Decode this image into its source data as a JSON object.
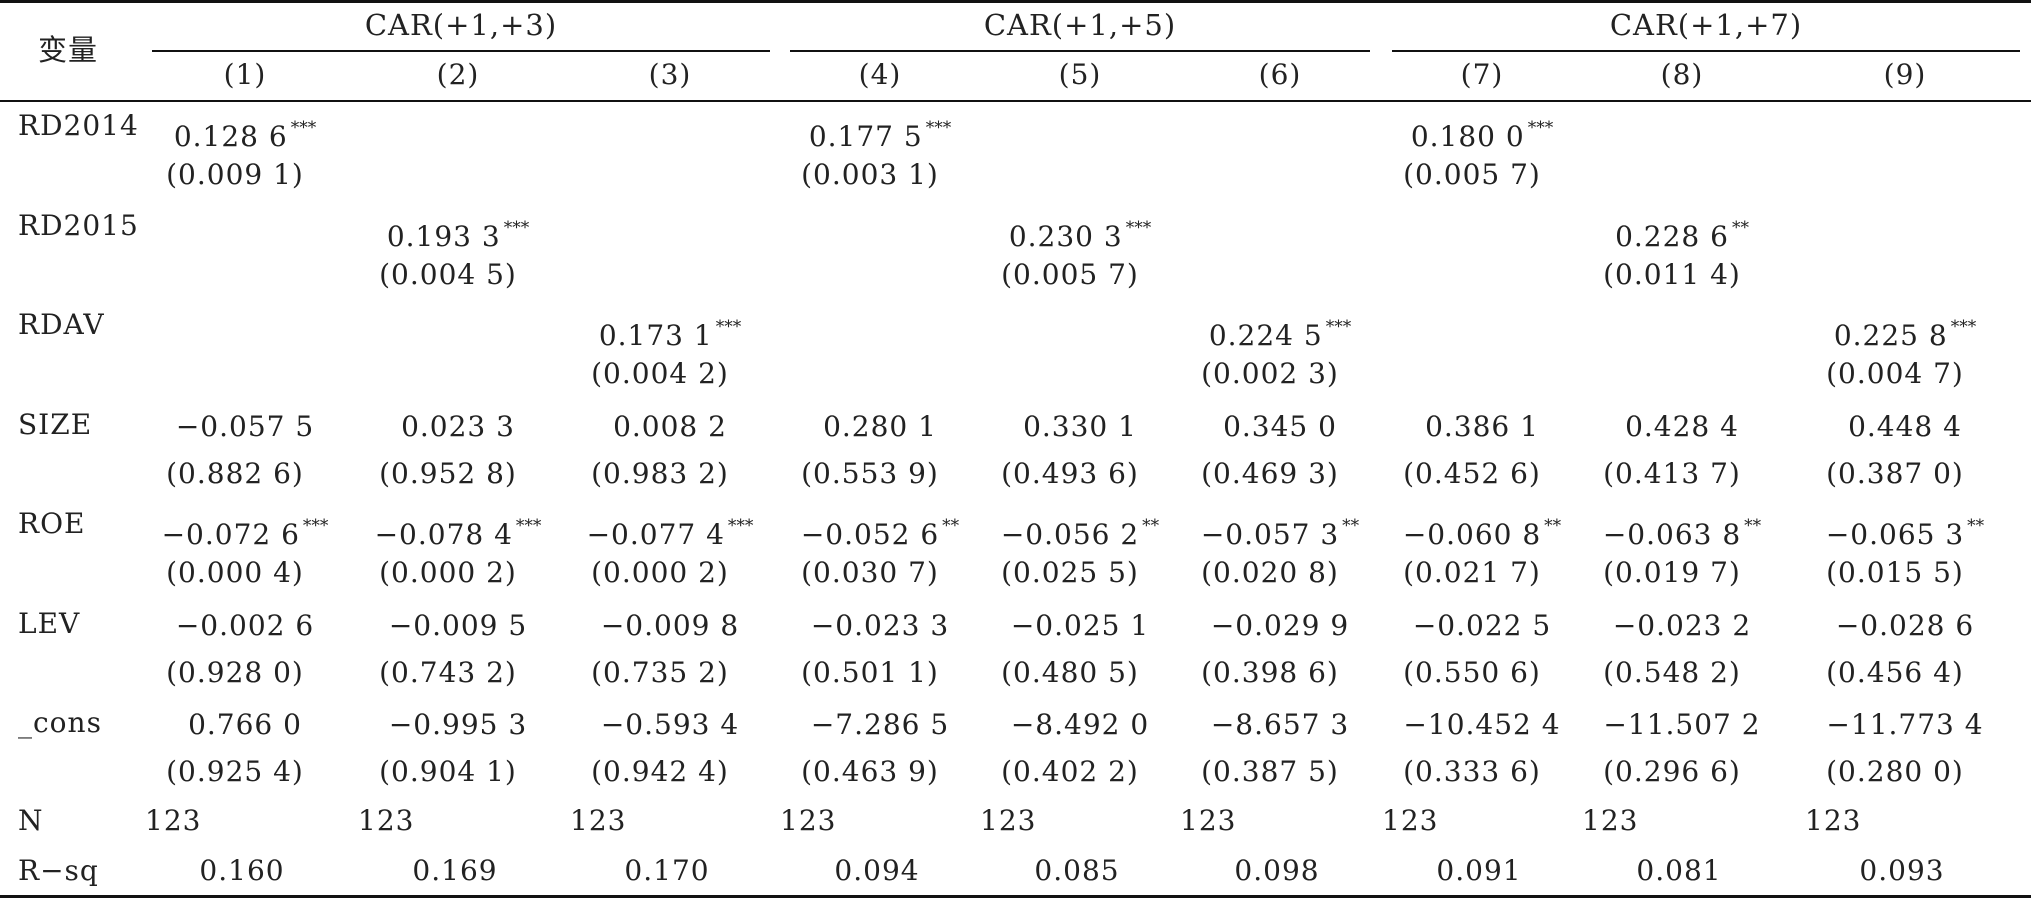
{
  "header": {
    "var_label": "变量",
    "groups": [
      "CAR(+1,+3)",
      "CAR(+1,+5)",
      "CAR(+1,+7)"
    ],
    "columns": [
      "(1)",
      "(2)",
      "(3)",
      "(4)",
      "(5)",
      "(6)",
      "(7)",
      "(8)",
      "(9)"
    ]
  },
  "rows": [
    {
      "label": "RD2014",
      "coef": [
        {
          "v": "0.128 6",
          "s": "***"
        },
        {
          "v": "",
          "s": ""
        },
        {
          "v": "",
          "s": ""
        },
        {
          "v": "0.177 5",
          "s": "***"
        },
        {
          "v": "",
          "s": ""
        },
        {
          "v": "",
          "s": ""
        },
        {
          "v": "0.180 0",
          "s": "***"
        },
        {
          "v": "",
          "s": ""
        },
        {
          "v": "",
          "s": ""
        }
      ],
      "p": [
        "(0.009 1)",
        "",
        "",
        "(0.003 1)",
        "",
        "",
        "(0.005 7)",
        "",
        ""
      ]
    },
    {
      "label": "RD2015",
      "coef": [
        {
          "v": "",
          "s": ""
        },
        {
          "v": "0.193 3",
          "s": "***"
        },
        {
          "v": "",
          "s": ""
        },
        {
          "v": "",
          "s": ""
        },
        {
          "v": "0.230 3",
          "s": "***"
        },
        {
          "v": "",
          "s": ""
        },
        {
          "v": "",
          "s": ""
        },
        {
          "v": "0.228 6",
          "s": "**"
        },
        {
          "v": "",
          "s": ""
        }
      ],
      "p": [
        "",
        "(0.004 5)",
        "",
        "",
        "(0.005 7)",
        "",
        "",
        "(0.011 4)",
        ""
      ]
    },
    {
      "label": "RDAV",
      "coef": [
        {
          "v": "",
          "s": ""
        },
        {
          "v": "",
          "s": ""
        },
        {
          "v": "0.173 1",
          "s": "***"
        },
        {
          "v": "",
          "s": ""
        },
        {
          "v": "",
          "s": ""
        },
        {
          "v": "0.224 5",
          "s": "***"
        },
        {
          "v": "",
          "s": ""
        },
        {
          "v": "",
          "s": ""
        },
        {
          "v": "0.225 8",
          "s": "***"
        }
      ],
      "p": [
        "",
        "",
        "(0.004 2)",
        "",
        "",
        "(0.002 3)",
        "",
        "",
        "(0.004 7)"
      ]
    },
    {
      "label": "SIZE",
      "coef": [
        {
          "v": "−0.057 5",
          "s": ""
        },
        {
          "v": "0.023 3",
          "s": ""
        },
        {
          "v": "0.008 2",
          "s": ""
        },
        {
          "v": "0.280 1",
          "s": ""
        },
        {
          "v": "0.330 1",
          "s": ""
        },
        {
          "v": "0.345 0",
          "s": ""
        },
        {
          "v": "0.386 1",
          "s": ""
        },
        {
          "v": "0.428 4",
          "s": ""
        },
        {
          "v": "0.448 4",
          "s": ""
        }
      ],
      "p": [
        "(0.882 6)",
        "(0.952 8)",
        "(0.983 2)",
        "(0.553 9)",
        "(0.493 6)",
        "(0.469 3)",
        "(0.452 6)",
        "(0.413 7)",
        "(0.387 0)"
      ]
    },
    {
      "label": "ROE",
      "coef": [
        {
          "v": "−0.072 6",
          "s": "***"
        },
        {
          "v": "−0.078 4",
          "s": "***"
        },
        {
          "v": "−0.077 4",
          "s": "***"
        },
        {
          "v": "−0.052 6",
          "s": "**"
        },
        {
          "v": "−0.056 2",
          "s": "**"
        },
        {
          "v": "−0.057 3",
          "s": "**"
        },
        {
          "v": "−0.060 8",
          "s": "**"
        },
        {
          "v": "−0.063 8",
          "s": "**"
        },
        {
          "v": "−0.065 3",
          "s": "**"
        }
      ],
      "p": [
        "(0.000 4)",
        "(0.000 2)",
        "(0.000 2)",
        "(0.030 7)",
        "(0.025 5)",
        "(0.020 8)",
        "(0.021 7)",
        "(0.019 7)",
        "(0.015 5)"
      ]
    },
    {
      "label": "LEV",
      "coef": [
        {
          "v": "−0.002 6",
          "s": ""
        },
        {
          "v": "−0.009 5",
          "s": ""
        },
        {
          "v": "−0.009 8",
          "s": ""
        },
        {
          "v": "−0.023 3",
          "s": ""
        },
        {
          "v": "−0.025 1",
          "s": ""
        },
        {
          "v": "−0.029 9",
          "s": ""
        },
        {
          "v": "−0.022 5",
          "s": ""
        },
        {
          "v": "−0.023 2",
          "s": ""
        },
        {
          "v": "−0.028 6",
          "s": ""
        }
      ],
      "p": [
        "(0.928 0)",
        "(0.743 2)",
        "(0.735 2)",
        "(0.501 1)",
        "(0.480 5)",
        "(0.398 6)",
        "(0.550 6)",
        "(0.548 2)",
        "(0.456 4)"
      ]
    },
    {
      "label": "_cons",
      "coef": [
        {
          "v": "0.766 0",
          "s": ""
        },
        {
          "v": "−0.995 3",
          "s": ""
        },
        {
          "v": "−0.593 4",
          "s": ""
        },
        {
          "v": "−7.286 5",
          "s": ""
        },
        {
          "v": "−8.492 0",
          "s": ""
        },
        {
          "v": "−8.657 3",
          "s": ""
        },
        {
          "v": "−10.452 4",
          "s": ""
        },
        {
          "v": "−11.507 2",
          "s": ""
        },
        {
          "v": "−11.773 4",
          "s": ""
        }
      ],
      "p": [
        "(0.925 4)",
        "(0.904 1)",
        "(0.942 4)",
        "(0.463 9)",
        "(0.402 2)",
        "(0.387 5)",
        "(0.333 6)",
        "(0.296 6)",
        "(0.280 0)"
      ]
    }
  ],
  "n_row": {
    "label": "N",
    "values": [
      "123",
      "123",
      "123",
      "123",
      "123",
      "123",
      "123",
      "123",
      "123"
    ]
  },
  "rsq_row": {
    "label": "R−sq",
    "values": [
      "0.160",
      "0.169",
      "0.170",
      "0.094",
      "0.085",
      "0.098",
      "0.091",
      "0.081",
      "0.093"
    ]
  }
}
